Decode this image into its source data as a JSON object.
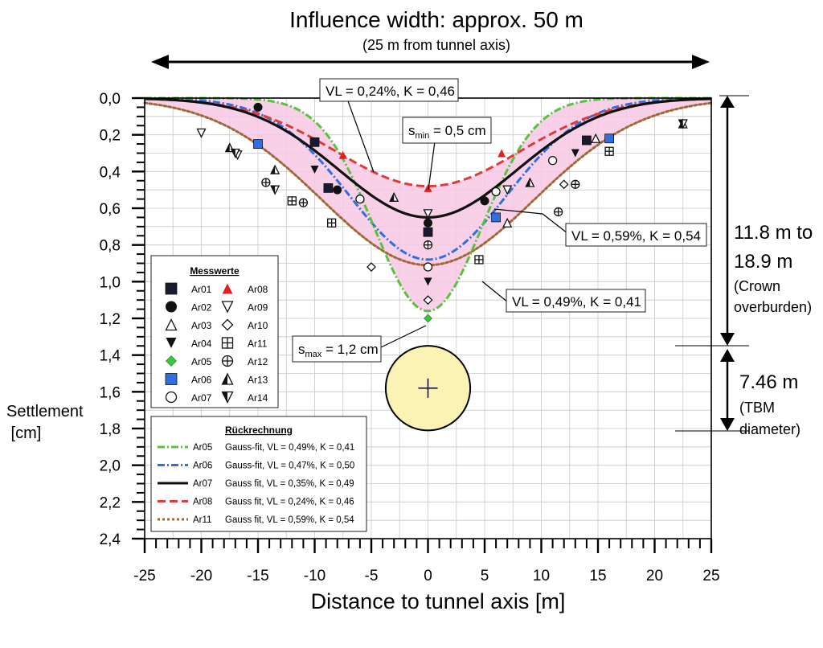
{
  "header": {
    "title": "Influence width: approx. 50 m",
    "subtitle": "(25 m from tunnel axis)"
  },
  "annotations": {
    "vl_top": "VL = 0,24%, K = 0,46",
    "smin_prefix": "s",
    "smin_sub": "min",
    "smin_rest": " = 0,5 cm",
    "vl_right": "VL = 0,59%, K = 0,54",
    "vl_mid": "VL = 0,49%, K = 0,41",
    "smax_prefix": "s",
    "smax_sub": "max",
    "smax_rest": " = 1,2 cm",
    "overburden_1": "11.8 m to",
    "overburden_2": "18.9 m",
    "overburden_3": "(Crown",
    "overburden_4": "overburden)",
    "tbm_1": "7.46 m",
    "tbm_2": "(TBM",
    "tbm_3": "diameter)"
  },
  "legend_measured": {
    "title": "Messwerte",
    "items": [
      {
        "label": "Ar01",
        "marker": "square-filled",
        "color": "#1a1a2e"
      },
      {
        "label": "Ar02",
        "marker": "circle-filled",
        "color": "#111111"
      },
      {
        "label": "Ar03",
        "marker": "triangle-up-open",
        "color": "#111111"
      },
      {
        "label": "Ar04",
        "marker": "triangle-down-filled",
        "color": "#111111"
      },
      {
        "label": "Ar05",
        "marker": "diamond-filled",
        "color": "#3ec43e"
      },
      {
        "label": "Ar06",
        "marker": "square-filled",
        "color": "#2f6fe0"
      },
      {
        "label": "Ar07",
        "marker": "circle-open",
        "color": "#111111"
      },
      {
        "label": "Ar08",
        "marker": "triangle-up-filled",
        "color": "#e02020"
      },
      {
        "label": "Ar09",
        "marker": "triangle-down-open",
        "color": "#111111"
      },
      {
        "label": "Ar10",
        "marker": "diamond-open",
        "color": "#111111"
      },
      {
        "label": "Ar11",
        "marker": "square-cross",
        "color": "#111111"
      },
      {
        "label": "Ar12",
        "marker": "circle-cross",
        "color": "#111111"
      },
      {
        "label": "Ar13",
        "marker": "triangle-up-half",
        "color": "#111111"
      },
      {
        "label": "Ar14",
        "marker": "triangle-down-half",
        "color": "#111111"
      }
    ]
  },
  "legend_fit": {
    "title": "Rückrechnung",
    "items": [
      {
        "id": "Ar05",
        "desc": "Gauss-fit, VL = 0,49%, K = 0,41",
        "color": "#55c43c",
        "dash": "9,3,2,3"
      },
      {
        "id": "Ar06",
        "desc": "Gauss-fit, VL = 0,47%, K = 0,50",
        "color": "#2f6fe0",
        "dash": "9,3,2,3"
      },
      {
        "id": "Ar07",
        "desc": "Gauss fit, VL = 0,35%, K = 0,49",
        "color": "#111111",
        "dash": ""
      },
      {
        "id": "Ar08",
        "desc": "Gauss fit, VL = 0,24%, K = 0,46",
        "color": "#e03a3a",
        "dash": "10,5"
      },
      {
        "id": "Ar11",
        "desc": "Gauss fit, VL = 0,59%, K = 0,54",
        "color": "#a0683a",
        "dash": "3,3"
      }
    ]
  },
  "chart_data": {
    "type": "scatter",
    "xlabel": "Distance to tunnel axis [m]",
    "ylabel": "Settlement [cm]",
    "ylabel_line1": "Settlement",
    "ylabel_line2": " [cm]",
    "xlim": [
      -25,
      25
    ],
    "ylim": [
      0,
      2.4
    ],
    "y_inverted": true,
    "grid": true,
    "x_ticks": [
      "-25",
      "-20",
      "-15",
      "-10",
      "-5",
      "0",
      "5",
      "10",
      "15",
      "20",
      "25"
    ],
    "y_ticks": [
      "0,0",
      "0,2",
      "0,4",
      "0,6",
      "0,8",
      "1,0",
      "1,2",
      "1,4",
      "1,6",
      "1,8",
      "2,0",
      "2,2",
      "2,4"
    ],
    "envelope_fill": "#f7c9e4",
    "tunnel": {
      "center_x": 0,
      "center_y": 1.58,
      "radius_m": 3.73,
      "fill": "#fbf3b4"
    },
    "fit_curves": [
      {
        "name": "Ar05",
        "smax": 1.16,
        "width": 4.75
      },
      {
        "name": "Ar06",
        "smax": 0.88,
        "width": 6.9
      },
      {
        "name": "Ar07",
        "smax": 0.65,
        "width": 7.8
      },
      {
        "name": "Ar08",
        "smax": 0.48,
        "width": 8.1
      },
      {
        "name": "Ar11",
        "smax": 0.91,
        "width": 9.4
      }
    ],
    "measured": [
      {
        "series": "Ar01",
        "points": [
          [
            -10,
            0.24
          ],
          [
            -8.8,
            0.49
          ],
          [
            0,
            0.73
          ],
          [
            14,
            0.23
          ]
        ]
      },
      {
        "series": "Ar02",
        "points": [
          [
            -15,
            0.05
          ],
          [
            -8,
            0.5
          ],
          [
            0,
            0.68
          ],
          [
            5,
            0.56
          ]
        ]
      },
      {
        "series": "Ar03",
        "points": [
          [
            7,
            0.68
          ],
          [
            14.8,
            0.22
          ]
        ]
      },
      {
        "series": "Ar04",
        "points": [
          [
            -13.5,
            0.5
          ],
          [
            -10,
            0.39
          ],
          [
            0,
            1.0
          ],
          [
            7,
            0.5
          ],
          [
            13,
            0.3
          ]
        ]
      },
      {
        "series": "Ar05",
        "points": [
          [
            0,
            1.2
          ]
        ]
      },
      {
        "series": "Ar06",
        "points": [
          [
            -15,
            0.25
          ],
          [
            6,
            0.65
          ],
          [
            16,
            0.22
          ]
        ]
      },
      {
        "series": "Ar07",
        "points": [
          [
            -6,
            0.55
          ],
          [
            0,
            0.92
          ],
          [
            6,
            0.51
          ],
          [
            11,
            0.34
          ]
        ]
      },
      {
        "series": "Ar08",
        "points": [
          [
            -7.5,
            0.31
          ],
          [
            0,
            0.49
          ],
          [
            6.5,
            0.3
          ]
        ]
      },
      {
        "series": "Ar09",
        "points": [
          [
            -20,
            0.19
          ],
          [
            -16.8,
            0.31
          ],
          [
            0,
            0.63
          ],
          [
            7,
            0.5
          ]
        ]
      },
      {
        "series": "Ar10",
        "points": [
          [
            -5,
            0.92
          ],
          [
            0,
            1.1
          ],
          [
            12,
            0.47
          ]
        ]
      },
      {
        "series": "Ar11",
        "points": [
          [
            -12,
            0.56
          ],
          [
            -8.5,
            0.68
          ],
          [
            4.5,
            0.88
          ],
          [
            16,
            0.29
          ]
        ]
      },
      {
        "series": "Ar12",
        "points": [
          [
            -14.3,
            0.46
          ],
          [
            -11,
            0.57
          ],
          [
            0,
            0.8
          ],
          [
            11.5,
            0.62
          ],
          [
            13,
            0.47
          ]
        ]
      },
      {
        "series": "Ar13",
        "points": [
          [
            -17.5,
            0.27
          ],
          [
            -13.5,
            0.39
          ],
          [
            -3,
            0.54
          ],
          [
            9,
            0.46
          ],
          [
            22.5,
            0.14
          ]
        ]
      },
      {
        "series": "Ar14",
        "points": [
          [
            -17,
            0.3
          ],
          [
            -13.5,
            0.5
          ],
          [
            22.5,
            0.14
          ]
        ]
      }
    ]
  }
}
